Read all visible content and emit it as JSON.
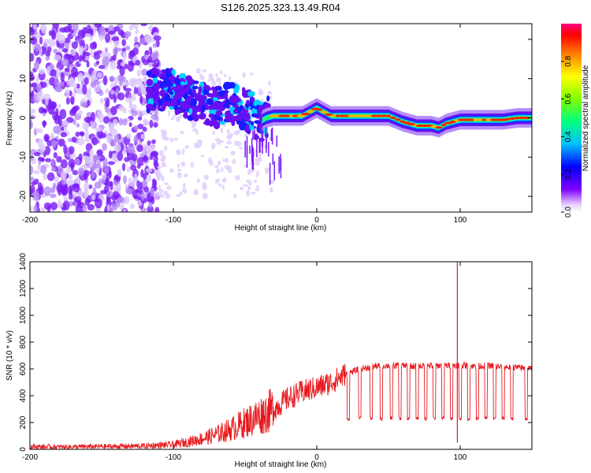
{
  "figure_title": "S126.2025.323.13.49.R04",
  "chart_data": [
    {
      "type": "heatmap",
      "title": "S126.2025.323.13.49.R04",
      "xlabel": "Height of straight line (km)",
      "ylabel": "Frequency (Hz)",
      "xlim": [
        -200,
        150
      ],
      "ylim": [
        -24,
        24
      ],
      "xticks": [
        -200,
        -100,
        0,
        100
      ],
      "yticks": [
        -20,
        -10,
        0,
        10,
        20
      ],
      "xtick_labels": [
        "-200",
        "-100",
        "0",
        "100"
      ],
      "ytick_labels": [
        "-20",
        "-10",
        "0",
        "10",
        "20"
      ],
      "colorbar": {
        "label": "Normalized spectral amplitude",
        "range": [
          0,
          1
        ],
        "ticks": [
          0.0,
          0.2,
          0.4,
          0.6,
          0.8
        ],
        "tick_labels": [
          "0.0",
          "0.2",
          "0.4",
          "0.6",
          "0.8"
        ],
        "colors": [
          "#ffffff",
          "#7f00ff",
          "#0000ff",
          "#00ffff",
          "#00ff00",
          "#ffff00",
          "#ff7f00",
          "#ff0000",
          "#ff007f"
        ]
      },
      "ridge": {
        "x": [
          -115,
          -100,
          -90,
          -80,
          -70,
          -60,
          -50,
          -45,
          -40,
          -35,
          -30,
          -20,
          -10,
          -5,
          0,
          5,
          10,
          20,
          30,
          40,
          45,
          50,
          60,
          70,
          80,
          85,
          90,
          95,
          100,
          110,
          120,
          130,
          140,
          150
        ],
        "y": [
          7,
          7,
          5,
          4,
          3,
          4,
          2,
          1,
          -1,
          0,
          0.5,
          0.5,
          0.5,
          1.5,
          2.5,
          1.5,
          0.5,
          0.5,
          0.5,
          0.5,
          0.5,
          0.5,
          -1,
          -2,
          -2,
          -2.5,
          -1.5,
          -1,
          -0.5,
          -0.5,
          -0.5,
          -0.5,
          0,
          0
        ]
      }
    },
    {
      "type": "line",
      "xlabel": "Height of straight line (km)",
      "ylabel": "SNR (10 * v/v)",
      "xlim": [
        -200,
        150
      ],
      "ylim": [
        0,
        1400
      ],
      "xticks": [
        -200,
        -100,
        0,
        100
      ],
      "yticks": [
        0,
        200,
        400,
        600,
        800,
        1000,
        1200,
        1400
      ],
      "xtick_labels": [
        "-200",
        "-100",
        "0",
        "100"
      ],
      "ytick_labels": [
        "0",
        "200",
        "400",
        "600",
        "800",
        "1000",
        "1200",
        "1400"
      ],
      "color": "#e8191e",
      "series": [
        {
          "name": "SNR",
          "x": [
            -200,
            -180,
            -160,
            -140,
            -120,
            -100,
            -90,
            -80,
            -70,
            -60,
            -50,
            -40,
            -30,
            -20,
            -10,
            0,
            10,
            20,
            30,
            40,
            50,
            60,
            70,
            80,
            90,
            100,
            110,
            120,
            130,
            140,
            150
          ],
          "y": [
            20,
            18,
            20,
            22,
            25,
            35,
            55,
            80,
            110,
            150,
            200,
            250,
            300,
            380,
            430,
            460,
            500,
            560,
            600,
            620,
            625,
            625,
            620,
            625,
            625,
            630,
            620,
            625,
            615,
            610,
            600
          ]
        }
      ],
      "annotations": {
        "dips": {
          "x": [
            22,
            30,
            38,
            45,
            52,
            58,
            64,
            70,
            76,
            82,
            88,
            94,
            100,
            106,
            112,
            118,
            124,
            130,
            136,
            146
          ],
          "y": 230
        },
        "spike": {
          "x": 98,
          "ymax": 1400,
          "ymin": 50
        }
      }
    }
  ]
}
